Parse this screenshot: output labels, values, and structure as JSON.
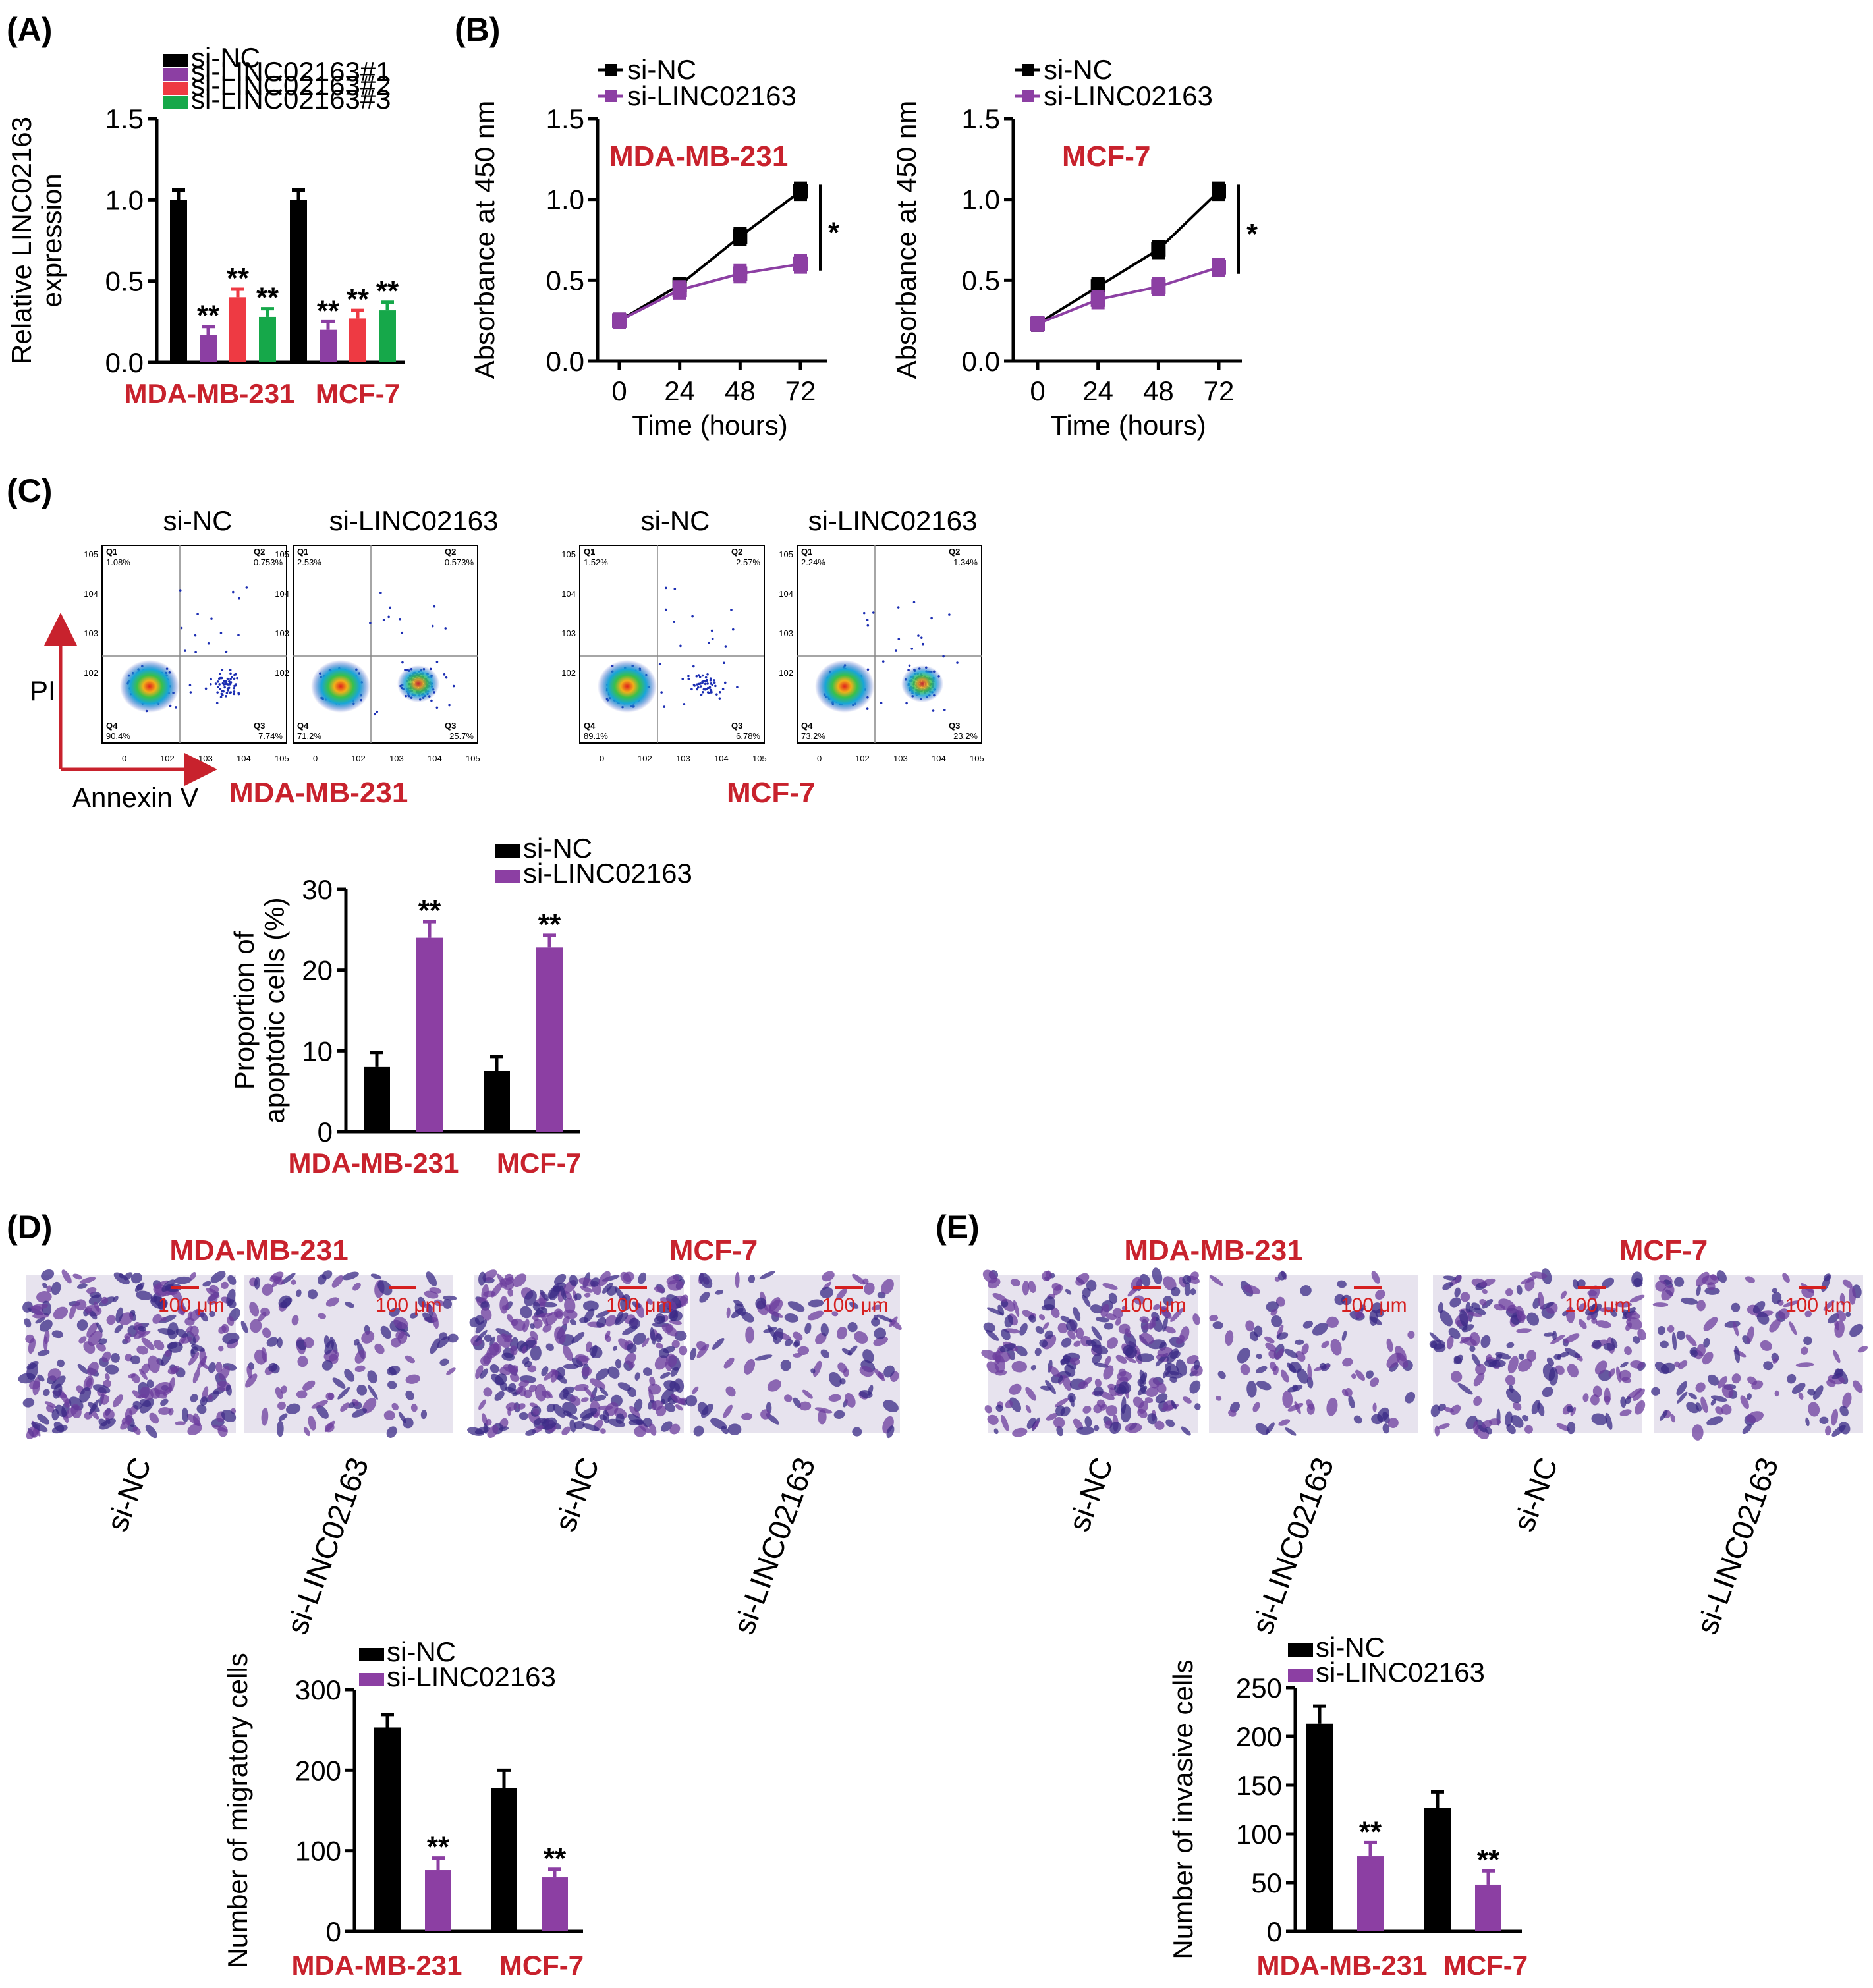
{
  "panel_labels": {
    "A": "(A)",
    "B": "(B)",
    "C": "(C)",
    "D": "(D)",
    "E": "(E)"
  },
  "colors": {
    "si_nc": "#000000",
    "si_linc": "#8c3fa3",
    "si_linc2": "#ee3a43",
    "si_linc3": "#16a84a",
    "cell_red": "#c8222d"
  },
  "flow": {
    "cell_lines": [
      "MDA-MB-231",
      "MCF-7"
    ],
    "group_labels": [
      "si-NC",
      "si-LINC02163",
      "si-NC",
      "si-LINC02163"
    ],
    "y_axis_label": "PI",
    "x_axis_label": "Annexin V",
    "tick_labels": [
      "0",
      "10",
      "2",
      "3",
      "4",
      "5"
    ],
    "plots": [
      {
        "q1": "1.08%",
        "q2": "0.753%",
        "q3": "7.74%",
        "q4": "90.4%"
      },
      {
        "q1": "2.53%",
        "q2": "0.573%",
        "q3": "25.7%",
        "q4": "71.2%"
      },
      {
        "q1": "1.52%",
        "q2": "2.57%",
        "q3": "6.78%",
        "q4": "89.1%"
      },
      {
        "q1": "2.24%",
        "q2": "1.34%",
        "q3": "23.2%",
        "q4": "73.2%"
      }
    ],
    "quadrant_names": [
      "Q1",
      "Q2",
      "Q3",
      "Q4"
    ]
  },
  "images": {
    "D": {
      "cell_lines": [
        "MDA-MB-231",
        "MCF-7"
      ],
      "labels": [
        "si-NC",
        "si-LINC02163",
        "si-NC",
        "si-LINC02163"
      ],
      "scale_bar": "100 μm"
    },
    "E": {
      "cell_lines": [
        "MDA-MB-231",
        "MCF-7"
      ],
      "labels": [
        "si-NC",
        "si-LINC02163",
        "si-NC",
        "si-LINC02163"
      ],
      "scale_bar": "100 μm"
    }
  },
  "chart_data": [
    {
      "id": "A",
      "type": "bar",
      "title": "",
      "categories": [
        "MDA-MB-231",
        "MCF-7"
      ],
      "ylabel": [
        "Relative LINC02163",
        "expression"
      ],
      "ylim": [
        0,
        1.5
      ],
      "yticks": [
        "0.0",
        "0.5",
        "1.0",
        "1.5"
      ],
      "series": [
        {
          "name": "si-NC",
          "values": [
            1.0,
            1.0
          ],
          "errors": [
            0.06,
            0.06
          ],
          "sig": [
            "",
            ""
          ]
        },
        {
          "name": "si-LINC02163#1",
          "values": [
            0.17,
            0.2
          ],
          "errors": [
            0.05,
            0.05
          ],
          "sig": [
            "**",
            "**"
          ]
        },
        {
          "name": "si-LINC02163#2",
          "values": [
            0.4,
            0.27
          ],
          "errors": [
            0.05,
            0.05
          ],
          "sig": [
            "**",
            "**"
          ]
        },
        {
          "name": "si-LINC02163#3",
          "values": [
            0.28,
            0.32
          ],
          "errors": [
            0.05,
            0.05
          ],
          "sig": [
            "**",
            "**"
          ]
        }
      ]
    },
    {
      "id": "B1",
      "type": "line",
      "title": "MDA-MB-231",
      "x": [
        0,
        24,
        48,
        72
      ],
      "xticks": [
        "0",
        "24",
        "48",
        "72"
      ],
      "xlabel": "Time (hours)",
      "ylabel": "Absorbance at 450 nm",
      "ylim": [
        0,
        1.5
      ],
      "yticks": [
        "0.0",
        "0.5",
        "1.0",
        "1.5"
      ],
      "sig": "*",
      "series": [
        {
          "name": "si-NC",
          "values": [
            0.25,
            0.47,
            0.77,
            1.05
          ],
          "errors": [
            0.04,
            0.04,
            0.05,
            0.05
          ]
        },
        {
          "name": "si-LINC02163",
          "values": [
            0.25,
            0.44,
            0.54,
            0.6
          ],
          "errors": [
            0.04,
            0.05,
            0.05,
            0.05
          ]
        }
      ]
    },
    {
      "id": "B2",
      "type": "line",
      "title": "MCF-7",
      "x": [
        0,
        24,
        48,
        72
      ],
      "xticks": [
        "0",
        "24",
        "48",
        "72"
      ],
      "xlabel": "Time (hours)",
      "ylabel": "Absorbance at 450 nm",
      "ylim": [
        0,
        1.5
      ],
      "yticks": [
        "0.0",
        "0.5",
        "1.0",
        "1.5"
      ],
      "sig": "*",
      "series": [
        {
          "name": "si-NC",
          "values": [
            0.23,
            0.46,
            0.69,
            1.05
          ],
          "errors": [
            0.04,
            0.05,
            0.05,
            0.05
          ]
        },
        {
          "name": "si-LINC02163",
          "values": [
            0.23,
            0.38,
            0.46,
            0.58
          ],
          "errors": [
            0.04,
            0.05,
            0.05,
            0.05
          ]
        }
      ]
    },
    {
      "id": "C",
      "type": "bar",
      "title": "",
      "categories": [
        "MDA-MB-231",
        "MCF-7"
      ],
      "ylabel": [
        "Proportion of",
        "apoptotic cells (%)"
      ],
      "ylim": [
        0,
        30
      ],
      "yticks": [
        "0",
        "10",
        "20",
        "30"
      ],
      "series": [
        {
          "name": "si-NC",
          "values": [
            8.0,
            7.5
          ],
          "errors": [
            1.8,
            1.8
          ],
          "sig": [
            "",
            ""
          ]
        },
        {
          "name": "si-LINC02163",
          "values": [
            24.0,
            22.8
          ],
          "errors": [
            2.0,
            1.5
          ],
          "sig": [
            "**",
            "**"
          ]
        }
      ]
    },
    {
      "id": "D",
      "type": "bar",
      "title": "",
      "categories": [
        "MDA-MB-231",
        "MCF-7"
      ],
      "ylabel": [
        "Number of migratory cells"
      ],
      "ylim": [
        0,
        300
      ],
      "yticks": [
        "0",
        "100",
        "200",
        "300"
      ],
      "series": [
        {
          "name": "si-NC",
          "values": [
            253,
            178
          ],
          "errors": [
            16,
            22
          ],
          "sig": [
            "",
            ""
          ]
        },
        {
          "name": "si-LINC02163",
          "values": [
            76,
            67
          ],
          "errors": [
            15,
            10
          ],
          "sig": [
            "**",
            "**"
          ]
        }
      ]
    },
    {
      "id": "E",
      "type": "bar",
      "title": "",
      "categories": [
        "MDA-MB-231",
        "MCF-7"
      ],
      "ylabel": [
        "Number of invasive cells"
      ],
      "ylim": [
        0,
        250
      ],
      "yticks": [
        "0",
        "50",
        "100",
        "150",
        "200",
        "250"
      ],
      "series": [
        {
          "name": "si-NC",
          "values": [
            213,
            127
          ],
          "errors": [
            18,
            16
          ],
          "sig": [
            "",
            ""
          ]
        },
        {
          "name": "si-LINC02163",
          "values": [
            77,
            48
          ],
          "errors": [
            14,
            14
          ],
          "sig": [
            "**",
            "**"
          ]
        }
      ]
    }
  ]
}
